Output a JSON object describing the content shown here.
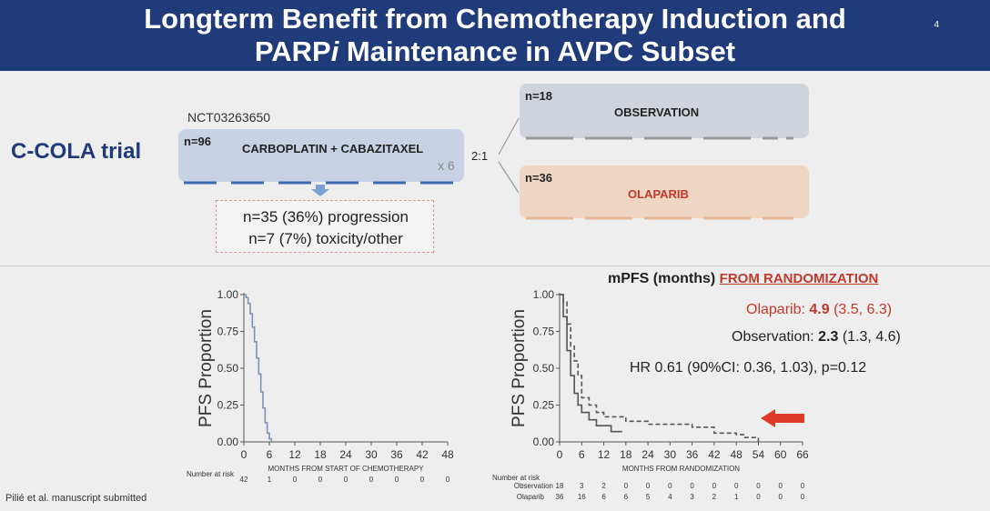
{
  "header": {
    "title_line1": "Longterm Benefit from Chemotherapy Induction and",
    "title_line2_a": "PARP",
    "title_line2_i": "i",
    "title_line2_b": " Maintenance in AVPC Subset",
    "slide_number": "4",
    "bg_color": "#1f3b7a"
  },
  "trial": {
    "name": "C-COLA trial",
    "nct": "NCT03263650",
    "induction": {
      "n": "n=96",
      "regimen": "CARBOPLATIN + CABAZITAXEL",
      "cycles": "x 6"
    },
    "randomization_ratio": "2:1",
    "arms": [
      {
        "n": "n=18",
        "label": "OBSERVATION",
        "color": "#cfd3db",
        "text_color": "#222222"
      },
      {
        "n": "n=36",
        "label": "OLAPARIB",
        "color": "#efd5c4",
        "text_color": "#c0392b"
      }
    ],
    "dropouts": [
      "n=35 (36%) progression",
      "n=7 (7%) toxicity/other"
    ]
  },
  "results": {
    "heading_main": "mPFS (months) ",
    "heading_red": "FROM RANDOMIZATION",
    "olaparib": {
      "label": "Olaparib: ",
      "median": "4.9",
      "ci": " (3.5, 6.3)",
      "color": "#c0392b"
    },
    "observation": {
      "label": "Observation: ",
      "median": "2.3",
      "ci": " (1.3, 4.6)"
    },
    "hr": "HR 0.61 (90%CI: 0.36, 1.03), p=0.12"
  },
  "citation": "Pilié et al. manuscript submitted",
  "chart_data": [
    {
      "type": "line",
      "title": "",
      "xlabel": "MONTHS FROM START OF CHEMOTHERAPY",
      "ylabel": "PFS Proportion",
      "xlim": [
        0,
        48
      ],
      "ylim": [
        0,
        1
      ],
      "x_ticks": [
        "0",
        "6",
        "12",
        "18",
        "24",
        "30",
        "36",
        "42",
        "48"
      ],
      "y_ticks": [
        "0.00",
        "0.25",
        "0.50",
        "0.75",
        "1.00"
      ],
      "series": [
        {
          "color": "#7a93b8",
          "x": [
            0,
            0.5,
            1,
            1.5,
            2,
            2.5,
            3,
            3.5,
            4,
            4.5,
            5,
            5.5,
            6,
            6.5
          ],
          "y": [
            1.0,
            0.98,
            0.94,
            0.87,
            0.78,
            0.68,
            0.57,
            0.46,
            0.34,
            0.23,
            0.13,
            0.06,
            0.02,
            0.0
          ]
        }
      ],
      "at_risk": {
        "title": "Number at risk",
        "rows": [
          {
            "name": "",
            "values": [
              "42",
              "1",
              "0",
              "0",
              "0",
              "0",
              "0",
              "0",
              "0"
            ]
          }
        ]
      }
    },
    {
      "type": "line",
      "title": "",
      "xlabel": "MONTHS FROM RANDOMIZATION",
      "ylabel": "PFS Proportion",
      "xlim": [
        0,
        66
      ],
      "ylim": [
        0,
        1
      ],
      "x_ticks": [
        "0",
        "6",
        "12",
        "18",
        "24",
        "30",
        "36",
        "42",
        "48",
        "54",
        "60",
        "66"
      ],
      "y_ticks": [
        "0.00",
        "0.25",
        "0.50",
        "0.75",
        "1.00"
      ],
      "series": [
        {
          "name": "Observation",
          "style": "solid",
          "color": "#555555",
          "x": [
            0,
            1,
            2,
            3,
            4,
            5,
            6,
            8,
            10,
            12,
            14,
            17
          ],
          "y": [
            1.0,
            0.85,
            0.62,
            0.45,
            0.33,
            0.25,
            0.2,
            0.15,
            0.11,
            0.11,
            0.07,
            0.07
          ]
        },
        {
          "name": "Olaparib",
          "style": "dashed",
          "color": "#555555",
          "x": [
            0,
            1,
            2,
            3,
            4,
            5,
            6,
            8,
            10,
            12,
            18,
            24,
            36,
            42,
            48,
            50,
            54
          ],
          "y": [
            1.0,
            0.95,
            0.8,
            0.65,
            0.55,
            0.45,
            0.3,
            0.25,
            0.2,
            0.17,
            0.14,
            0.12,
            0.1,
            0.06,
            0.05,
            0.03,
            0.0
          ]
        }
      ],
      "at_risk": {
        "title": "Number at risk",
        "rows": [
          {
            "name": "Observation",
            "values": [
              "18",
              "3",
              "2",
              "0",
              "0",
              "0",
              "0",
              "0",
              "0",
              "0",
              "0",
              "0"
            ]
          },
          {
            "name": "Olaparib",
            "values": [
              "36",
              "16",
              "6",
              "6",
              "5",
              "4",
              "3",
              "2",
              "1",
              "0",
              "0",
              "0"
            ]
          }
        ]
      }
    }
  ]
}
